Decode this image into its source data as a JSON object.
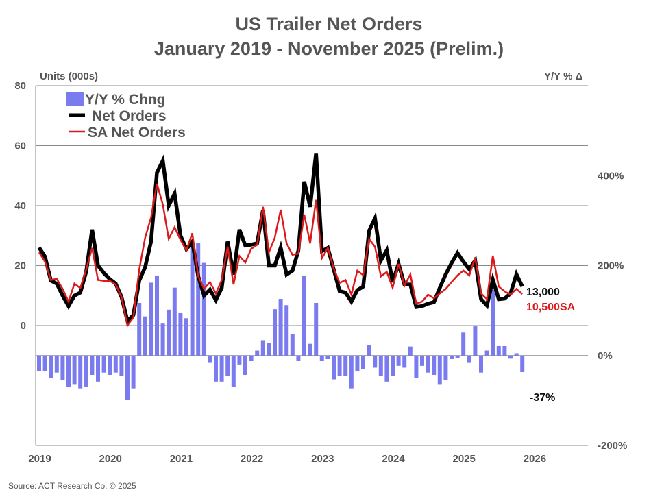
{
  "chart_data": {
    "type": "bar+line",
    "title": "US Trailer Net Orders",
    "subtitle": "January 2019 - November 2025 (Prelim.)",
    "ylabel_left": "Units (000s)",
    "ylabel_right": "Y/Y % Δ",
    "ylim_left": [
      -40,
      80
    ],
    "ylim_right": [
      -200,
      600
    ],
    "yticks_left": [
      "80",
      "60",
      "40",
      "20",
      "0"
    ],
    "yticks_right": [
      "400%",
      "200%",
      "0%",
      "-200%"
    ],
    "xticks": [
      "2019",
      "2020",
      "2021",
      "2022",
      "2023",
      "2024",
      "2025",
      "2026"
    ],
    "grid": true,
    "legend_position": "top-left",
    "start_month": "2019-01",
    "end_month": "2025-11",
    "series": [
      {
        "name": "Y/Y % Chng",
        "type": "bar",
        "axis": "right",
        "color": "#7b7bf0",
        "values": [
          -34,
          -34,
          -50,
          -38,
          -55,
          -69,
          -65,
          -73,
          -69,
          -43,
          -58,
          -38,
          -43,
          -38,
          -46,
          -99,
          -73,
          117,
          87,
          162,
          178,
          71,
          102,
          151,
          95,
          83,
          247,
          251,
          206,
          -15,
          -58,
          -58,
          -46,
          -69,
          -20,
          -43,
          -12,
          11,
          34,
          28,
          103,
          126,
          112,
          47,
          -11,
          178,
          26,
          117,
          -12,
          -8,
          -53,
          -46,
          -46,
          -73,
          -34,
          -30,
          23,
          -27,
          -46,
          -58,
          -46,
          -23,
          -27,
          20,
          -50,
          -23,
          -38,
          -43,
          -65,
          -55,
          -8,
          -6,
          51,
          -15,
          65,
          -38,
          11,
          146,
          21,
          21,
          -7,
          5,
          -37
        ]
      },
      {
        "name": "Net Orders",
        "type": "line",
        "axis": "left",
        "color": "#000000",
        "values": [
          26,
          23,
          15,
          14,
          10,
          6.5,
          10,
          11,
          18,
          32,
          20,
          17.5,
          15.5,
          14,
          9.5,
          1.5,
          3.5,
          15,
          19.5,
          28,
          51,
          55,
          40,
          44,
          30,
          25.5,
          28,
          16.5,
          10,
          12,
          8.5,
          12.6,
          28,
          17,
          32,
          26.7,
          27,
          27.4,
          38.5,
          20,
          20,
          26,
          17,
          18.3,
          25,
          48,
          39.6,
          57.5,
          24.8,
          25.9,
          18.7,
          11.5,
          11,
          8,
          11.8,
          13,
          31.6,
          35.8,
          21.7,
          25.1,
          14.5,
          20.6,
          13.7,
          13.7,
          6.2,
          6.5,
          7.3,
          7.8,
          12.6,
          17.1,
          20.9,
          24.2,
          21.3,
          18.8,
          21.7,
          8.8,
          6.7,
          15.3,
          8.8,
          9,
          10.7,
          17.1,
          13
        ]
      },
      {
        "name": "SA Net Orders",
        "type": "line",
        "axis": "left",
        "color": "#dd1a1a",
        "values": [
          24.4,
          21.3,
          15.2,
          15.6,
          12.2,
          8,
          14,
          12.5,
          18.7,
          25.9,
          15.2,
          14.9,
          14.9,
          13.7,
          9.5,
          0,
          2.7,
          18.7,
          29.3,
          36,
          47.3,
          40.4,
          28.9,
          32.8,
          28.6,
          25.1,
          30.8,
          16.5,
          12.2,
          14.5,
          10.7,
          15.2,
          26.3,
          13.7,
          23.2,
          21,
          25.6,
          26.9,
          39.6,
          24.4,
          29.3,
          38.6,
          27.4,
          23.6,
          24,
          37,
          27.4,
          41.9,
          22.5,
          25.9,
          19,
          14.2,
          15.2,
          10.3,
          18.3,
          16.8,
          28.9,
          26.3,
          16.4,
          17.9,
          12.6,
          20.6,
          13.3,
          17.1,
          7.3,
          8,
          10.3,
          9.1,
          10.7,
          12.2,
          14.5,
          16.7,
          18.3,
          16.7,
          22.7,
          10.7,
          8.8,
          23.3,
          13,
          11.4,
          10.3,
          12.2,
          10.5
        ]
      }
    ],
    "annotations": {
      "net_orders_last": "13,000",
      "sa_last": "10,500SA",
      "yoy_last": "-37%"
    }
  },
  "source": "Source: ACT Research Co. © 2025"
}
